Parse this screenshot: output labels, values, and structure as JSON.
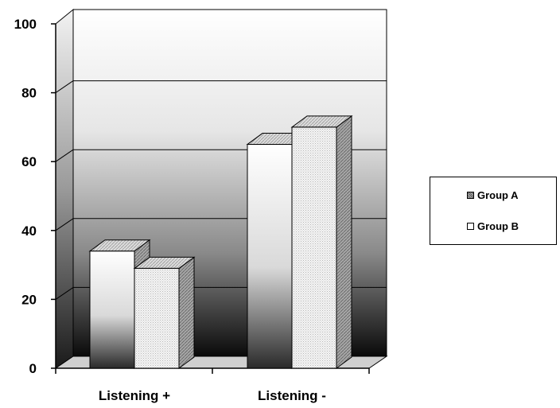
{
  "chart_data": {
    "type": "bar",
    "style": "3d-clustered",
    "categories": [
      "Listening +",
      "Listening -"
    ],
    "series": [
      {
        "name": "Group A",
        "values": [
          34,
          65
        ]
      },
      {
        "name": "Group B",
        "values": [
          29,
          70
        ]
      }
    ],
    "ylim": [
      0,
      100
    ],
    "yticks": [
      "0",
      "20",
      "40",
      "60",
      "80",
      "100"
    ],
    "grid": true,
    "legend_position": "right",
    "title": "",
    "xlabel": "",
    "ylabel": ""
  },
  "legend": {
    "items": [
      {
        "label": "Group A"
      },
      {
        "label": "Group B"
      }
    ]
  }
}
